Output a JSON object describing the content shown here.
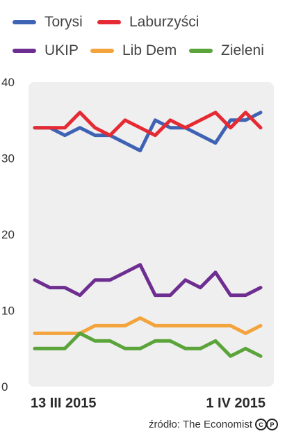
{
  "legend": [
    {
      "label": "Torysi",
      "color": "#3f63b4"
    },
    {
      "label": "Laburzyści",
      "color": "#e52a33"
    },
    {
      "label": "UKIP",
      "color": "#6e2e91"
    },
    {
      "label": "Lib Dem",
      "color": "#f3a43c"
    },
    {
      "label": "Zieleni",
      "color": "#5aa43a"
    }
  ],
  "source": {
    "text": "źródło: The Economist",
    "license_icon_1": "C",
    "license_icon_2": "P"
  },
  "chart_data": {
    "type": "line",
    "title": "",
    "xlabel": "",
    "ylabel": "",
    "ylim": [
      0,
      40
    ],
    "yticks": [
      "0",
      "10",
      "20",
      "30",
      "40"
    ],
    "x_tick_labels": [
      {
        "label": "13 III 2015",
        "index": 0
      },
      {
        "label": "1 IV 2015",
        "index": 15
      }
    ],
    "x": [
      0,
      1,
      2,
      3,
      4,
      5,
      6,
      7,
      8,
      9,
      10,
      11,
      12,
      13,
      14,
      15
    ],
    "grid": false,
    "legend_position": "top",
    "background": "#efefef",
    "series": [
      {
        "name": "Torysi",
        "color": "#3f63b4",
        "values": [
          34,
          34,
          33,
          34,
          33,
          33,
          32,
          31,
          35,
          34,
          34,
          33,
          32,
          35,
          35,
          36
        ]
      },
      {
        "name": "Laburzyści",
        "color": "#e52a33",
        "values": [
          34,
          34,
          34,
          36,
          34,
          33,
          35,
          34,
          33,
          35,
          34,
          35,
          36,
          34,
          36,
          34
        ]
      },
      {
        "name": "UKIP",
        "color": "#6e2e91",
        "values": [
          14,
          13,
          13,
          12,
          14,
          14,
          15,
          16,
          12,
          12,
          14,
          13,
          15,
          12,
          12,
          13
        ]
      },
      {
        "name": "Lib Dem",
        "color": "#f3a43c",
        "values": [
          7,
          7,
          7,
          7,
          8,
          8,
          8,
          9,
          8,
          8,
          8,
          8,
          8,
          8,
          7,
          8
        ]
      },
      {
        "name": "Zieleni",
        "color": "#5aa43a",
        "values": [
          5,
          5,
          5,
          7,
          6,
          6,
          5,
          5,
          6,
          6,
          5,
          5,
          6,
          4,
          5,
          4
        ]
      }
    ]
  }
}
